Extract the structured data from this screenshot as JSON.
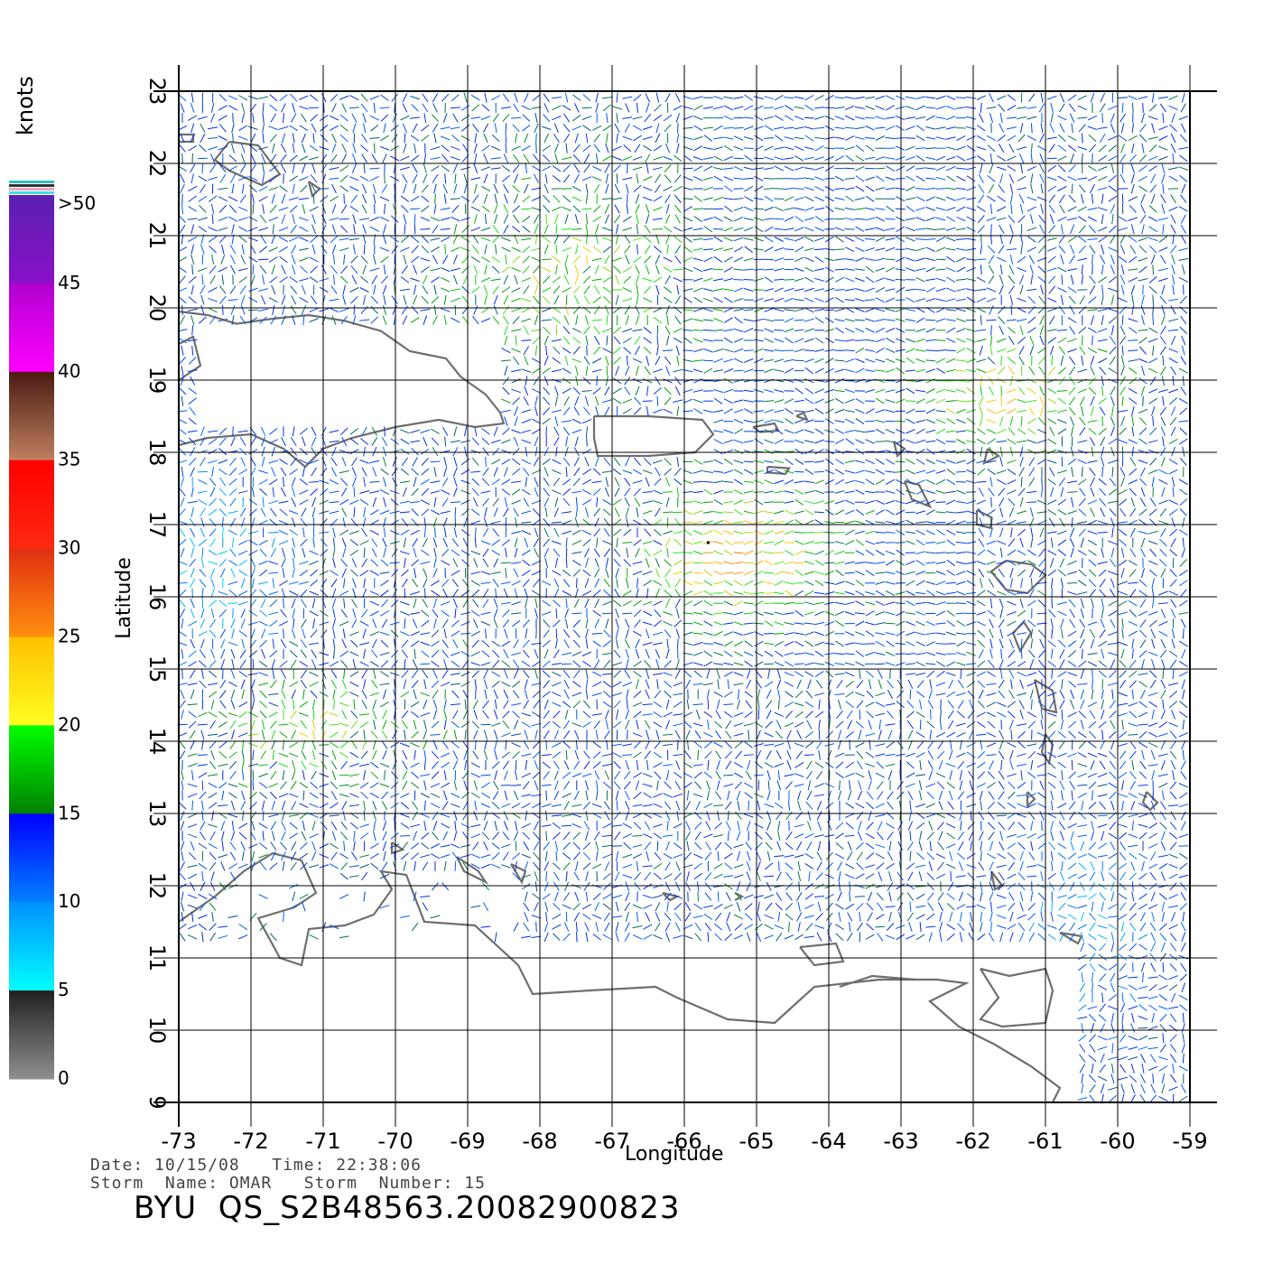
{
  "map": {
    "xlabel": "Longitude",
    "ylabel": "Latitude",
    "lon_range": [
      -73,
      -59
    ],
    "lat_range": [
      9,
      23
    ],
    "lon_ticks": [
      "-73",
      "-72",
      "-71",
      "-70",
      "-69",
      "-68",
      "-67",
      "-66",
      "-65",
      "-64",
      "-63",
      "-62",
      "-61",
      "-60",
      "-59"
    ],
    "lat_ticks": [
      "9",
      "10",
      "11",
      "12",
      "13",
      "14",
      "15",
      "16",
      "17",
      "18",
      "19",
      "20",
      "21",
      "22",
      "23"
    ],
    "grid": true,
    "coastline_color": "#6e6e6e"
  },
  "legend": {
    "unit": "knots",
    "labels": [
      ">50",
      "45",
      "40",
      "35",
      "30",
      "25",
      "20",
      "15",
      "10",
      "5",
      "0"
    ],
    "bands": [
      {
        "from": 45,
        "to": 50,
        "top": "#5a20b0",
        "bottom": "#8a10c8"
      },
      {
        "from": 40,
        "to": 45,
        "top": "#b000d0",
        "bottom": "#ff00ff"
      },
      {
        "from": 35,
        "to": 40,
        "top": "#4a1a10",
        "bottom": "#c08060"
      },
      {
        "from": 30,
        "to": 35,
        "top": "#ff0000",
        "bottom": "#ff2a10"
      },
      {
        "from": 25,
        "to": 30,
        "top": "#e03010",
        "bottom": "#ff9010"
      },
      {
        "from": 20,
        "to": 25,
        "top": "#ffc000",
        "bottom": "#ffff20"
      },
      {
        "from": 15,
        "to": 20,
        "top": "#00ff00",
        "bottom": "#008000"
      },
      {
        "from": 10,
        "to": 15,
        "top": "#0000ff",
        "bottom": "#0080ff"
      },
      {
        "from": 5,
        "to": 10,
        "top": "#0090ff",
        "bottom": "#00ffff"
      },
      {
        "from": 0,
        "to": 5,
        "top": "#202020",
        "bottom": "#909090"
      }
    ]
  },
  "footer": {
    "line1": "Date: 10/15/08   Time: 22:38:06",
    "line2": "Storm  Name: OMAR   Storm  Number: 15",
    "title": "BYU  QS_S2B48563.20082900823"
  }
}
